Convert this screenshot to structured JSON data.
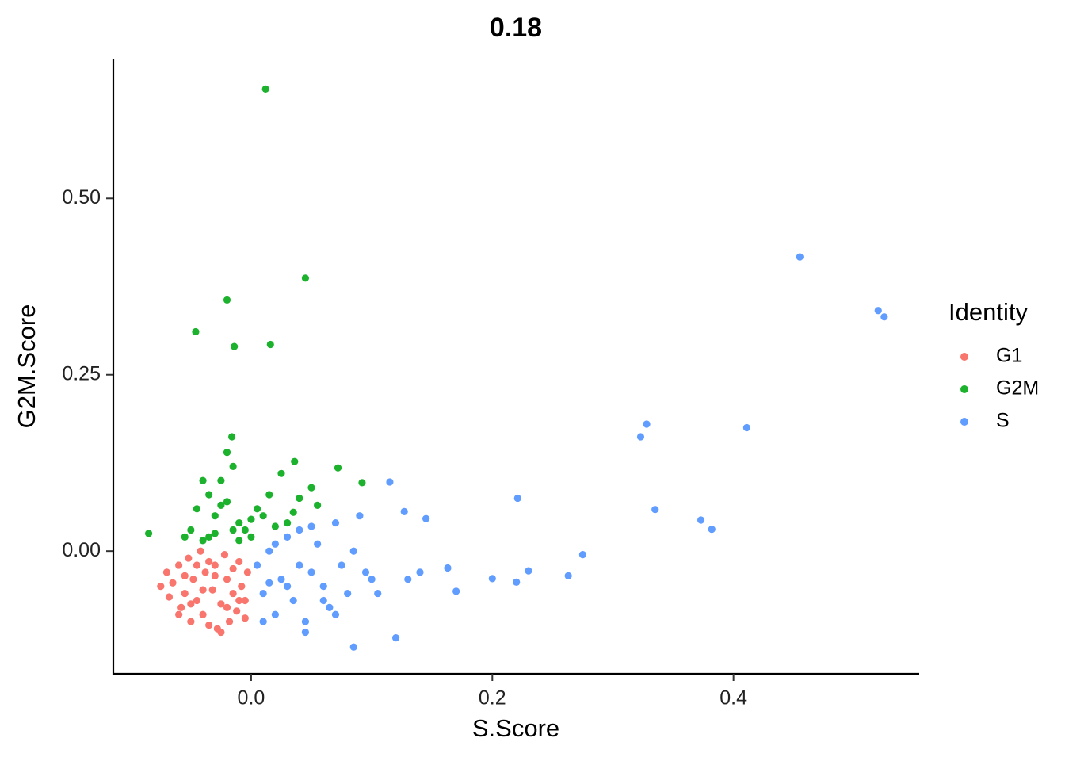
{
  "chart_data": {
    "type": "scatter",
    "title": "0.18",
    "x_label": "S.Score",
    "y_label": "G2M.Score",
    "legend_title": "Identity",
    "legend": "right",
    "grid": false,
    "xlim": [
      -0.1143,
      0.554
    ],
    "ylim": [
      -0.174,
      0.697
    ],
    "xticks": [
      {
        "value": 0,
        "label": "0.0"
      },
      0.2,
      0.4
    ],
    "yticks": [
      {
        "value": 0,
        "label": "0.00"
      },
      {
        "value": 0.25,
        "label": "0.25"
      },
      {
        "value": 0.5,
        "label": "0.50"
      }
    ],
    "series": [
      {
        "name": "G1",
        "color": "#F8766D",
        "x": [
          -0.075,
          -0.07,
          -0.068,
          -0.065,
          -0.06,
          -0.058,
          -0.055,
          -0.052,
          -0.05,
          -0.048,
          -0.045,
          -0.042,
          -0.04,
          -0.038,
          -0.035,
          -0.032,
          -0.03,
          -0.028,
          -0.025,
          -0.022,
          -0.02,
          -0.018,
          -0.015,
          -0.012,
          -0.01,
          -0.008,
          -0.005,
          -0.003,
          -0.06,
          -0.05,
          -0.04,
          -0.03,
          -0.02,
          -0.01,
          -0.045,
          -0.035,
          -0.025,
          -0.015,
          -0.055,
          -0.005
        ],
        "values": [
          -0.05,
          -0.03,
          -0.065,
          -0.045,
          -0.02,
          -0.08,
          -0.06,
          -0.01,
          -0.1,
          -0.04,
          -0.07,
          0.0,
          -0.09,
          -0.03,
          -0.105,
          -0.055,
          -0.02,
          -0.11,
          -0.075,
          -0.005,
          -0.04,
          -0.1,
          -0.06,
          -0.085,
          -0.015,
          -0.05,
          -0.095,
          -0.03,
          -0.09,
          -0.075,
          -0.055,
          -0.035,
          -0.08,
          -0.07,
          -0.02,
          -0.015,
          -0.115,
          -0.025,
          -0.035,
          -0.07
        ]
      },
      {
        "name": "G2M",
        "color": "#1DB22E",
        "x": [
          -0.055,
          -0.05,
          -0.045,
          -0.04,
          -0.035,
          -0.03,
          -0.025,
          -0.02,
          -0.015,
          -0.01,
          -0.005,
          0.0,
          0.005,
          0.01,
          0.015,
          0.02,
          0.025,
          0.03,
          0.04,
          0.05,
          -0.04,
          -0.03,
          -0.02,
          -0.01,
          0.0,
          -0.025,
          -0.015,
          -0.035,
          0.035,
          0.055,
          0.012,
          0.045,
          -0.02,
          -0.046,
          -0.014,
          0.016,
          -0.085,
          0.072,
          0.092,
          -0.016,
          0.036
        ],
        "values": [
          0.02,
          0.03,
          0.06,
          0.015,
          0.08,
          0.05,
          0.1,
          0.07,
          0.12,
          0.04,
          0.03,
          0.02,
          0.06,
          0.05,
          0.08,
          0.035,
          0.11,
          0.04,
          0.075,
          0.09,
          0.1,
          0.025,
          0.14,
          0.015,
          0.045,
          0.065,
          0.03,
          0.02,
          0.055,
          0.065,
          0.655,
          0.387,
          0.356,
          0.311,
          0.29,
          0.293,
          0.025,
          0.118,
          0.097,
          0.162,
          0.127
        ]
      },
      {
        "name": "S",
        "color": "#619CFF",
        "x": [
          0.005,
          0.01,
          0.015,
          0.02,
          0.025,
          0.03,
          0.035,
          0.04,
          0.045,
          0.05,
          0.055,
          0.06,
          0.065,
          0.07,
          0.075,
          0.08,
          0.09,
          0.1,
          0.01,
          0.02,
          0.03,
          0.04,
          0.05,
          0.06,
          0.07,
          0.085,
          0.095,
          0.105,
          0.015,
          0.045,
          0.455,
          0.52,
          0.525,
          0.328,
          0.323,
          0.411,
          0.335,
          0.373,
          0.382,
          0.221,
          0.275,
          0.263,
          0.23,
          0.22,
          0.2,
          0.163,
          0.17,
          0.145,
          0.127,
          0.115,
          0.12,
          0.085,
          0.13,
          0.14
        ],
        "values": [
          -0.02,
          -0.06,
          0.0,
          -0.09,
          -0.04,
          0.02,
          -0.07,
          0.03,
          -0.1,
          -0.03,
          0.01,
          -0.05,
          -0.08,
          0.04,
          -0.02,
          -0.06,
          0.05,
          -0.04,
          -0.1,
          0.01,
          -0.05,
          -0.02,
          0.035,
          -0.07,
          -0.09,
          0.0,
          -0.03,
          -0.06,
          -0.045,
          -0.115,
          0.417,
          0.341,
          0.332,
          0.18,
          0.162,
          0.175,
          0.059,
          0.044,
          0.031,
          0.075,
          -0.005,
          -0.035,
          -0.028,
          -0.044,
          -0.039,
          -0.024,
          -0.057,
          0.046,
          0.056,
          0.098,
          -0.123,
          -0.136,
          -0.04,
          -0.03
        ]
      }
    ]
  }
}
